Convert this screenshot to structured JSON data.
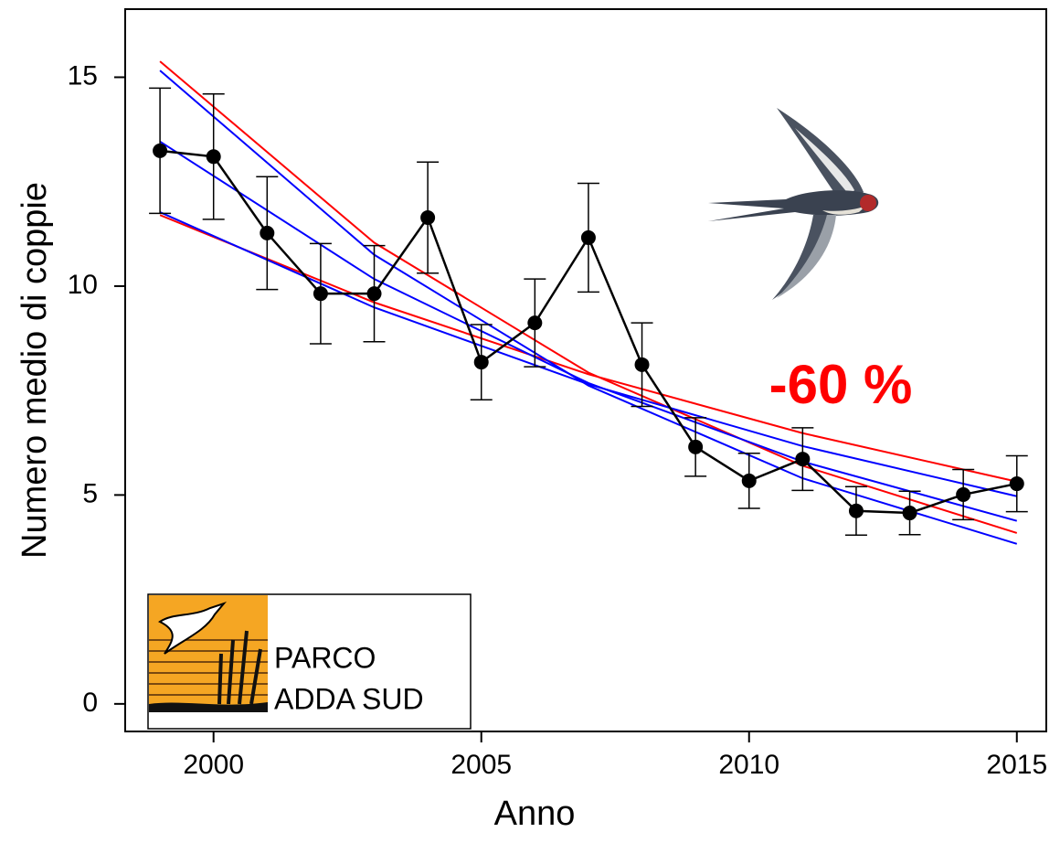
{
  "chart_data": {
    "type": "line",
    "x_label": "Anno",
    "y_label": "Numero medio di coppie",
    "annotation": "-60 %",
    "logo_text": [
      "PARCO",
      "ADDA SUD"
    ],
    "xlim": [
      1998.35,
      2015.55
    ],
    "ylim": [
      -0.66,
      16.63
    ],
    "xticks": [
      2000,
      2005,
      2010,
      2015
    ],
    "yticks": [
      0,
      5,
      10,
      15
    ],
    "series": [
      {
        "color": "#000000",
        "x": [
          1999,
          2000,
          2001,
          2002,
          2003,
          2004,
          2005,
          2006,
          2007,
          2008,
          2009,
          2010,
          2011,
          2012,
          2013,
          2014,
          2015
        ],
        "values": [
          13.24,
          13.1,
          11.27,
          9.82,
          9.82,
          11.64,
          8.18,
          9.12,
          11.16,
          8.12,
          6.15,
          5.34,
          5.86,
          4.62,
          4.57,
          5.01,
          5.27
        ],
        "errors": [
          1.5,
          1.5,
          1.35,
          1.2,
          1.15,
          1.33,
          0.9,
          1.05,
          1.3,
          1.0,
          0.7,
          0.66,
          0.75,
          0.58,
          0.52,
          0.6,
          0.67
        ]
      },
      {
        "color": "#ff0000",
        "x": [
          1999,
          2003,
          2007,
          2011,
          2015
        ],
        "values": [
          15.38,
          11.04,
          7.93,
          5.7,
          4.09
        ]
      },
      {
        "color": "#ff0000",
        "x": [
          1999,
          2003,
          2007,
          2011,
          2015
        ],
        "values": [
          11.7,
          9.61,
          7.89,
          6.48,
          5.32
        ]
      },
      {
        "color": "#0000ff",
        "x": [
          1999,
          2003,
          2007,
          2011,
          2015
        ],
        "values": [
          15.16,
          10.75,
          7.62,
          5.4,
          3.83
        ]
      },
      {
        "color": "#0000ff",
        "x": [
          1999,
          2003,
          2007,
          2011,
          2015
        ],
        "values": [
          11.77,
          9.49,
          7.65,
          6.17,
          4.97
        ]
      },
      {
        "color": "#0000ff",
        "x": [
          1999,
          2003,
          2007,
          2011,
          2015
        ],
        "values": [
          13.46,
          10.17,
          7.68,
          5.8,
          4.38
        ]
      }
    ]
  }
}
